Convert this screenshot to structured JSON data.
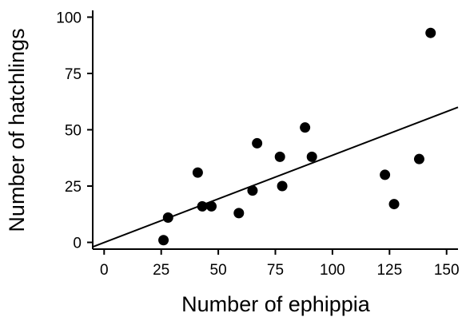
{
  "chart_data": {
    "type": "scatter",
    "title": "",
    "xlabel": "Number of ephippia",
    "ylabel": "Number of hatchlings",
    "xlim": [
      -5,
      155
    ],
    "ylim": [
      -3,
      103
    ],
    "xticks": [
      0,
      25,
      50,
      75,
      100,
      125,
      150
    ],
    "yticks": [
      0,
      25,
      50,
      75,
      100
    ],
    "x_tick_labels": [
      "0",
      "25",
      "50",
      "75",
      "100",
      "125",
      "150"
    ],
    "y_tick_labels": [
      "0",
      "25",
      "50",
      "75",
      "100"
    ],
    "grid": false,
    "legend": "none",
    "point_color": "#000000",
    "points": [
      {
        "x": 26,
        "y": 1
      },
      {
        "x": 28,
        "y": 11
      },
      {
        "x": 41,
        "y": 31
      },
      {
        "x": 43,
        "y": 16
      },
      {
        "x": 47,
        "y": 16
      },
      {
        "x": 59,
        "y": 13
      },
      {
        "x": 65,
        "y": 23
      },
      {
        "x": 67,
        "y": 44
      },
      {
        "x": 77,
        "y": 38
      },
      {
        "x": 78,
        "y": 25
      },
      {
        "x": 88,
        "y": 51
      },
      {
        "x": 91,
        "y": 38
      },
      {
        "x": 123,
        "y": 30
      },
      {
        "x": 127,
        "y": 17
      },
      {
        "x": 138,
        "y": 37
      },
      {
        "x": 143,
        "y": 93
      }
    ],
    "regression_line": {
      "color": "#000000",
      "points": [
        {
          "x": -5,
          "y": -2
        },
        {
          "x": 155,
          "y": 60
        }
      ]
    }
  }
}
